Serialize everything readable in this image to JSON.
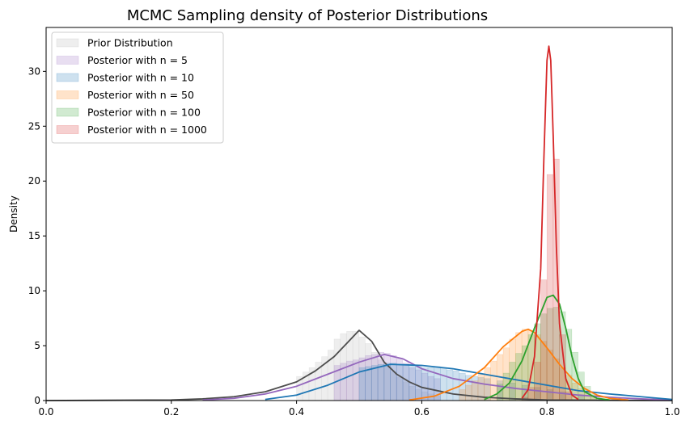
{
  "chart_data": {
    "type": "area",
    "title": "MCMC Sampling density of Posterior Distributions",
    "xlabel": "",
    "ylabel": "Density",
    "xlim": [
      0,
      1
    ],
    "ylim": [
      0,
      34
    ],
    "xticks": [
      "0.0",
      "0.2",
      "0.4",
      "0.6",
      "0.8",
      "1.0"
    ],
    "yticks": [
      "0",
      "5",
      "10",
      "15",
      "20",
      "25",
      "30"
    ],
    "grid": false,
    "legend_position": "top-left",
    "series": [
      {
        "name": "Prior Distribution",
        "color": "#b0b0b0",
        "line_color": "#4d4d4d",
        "bin_width": 0.01,
        "hist": [
          [
            0.4,
            2.2
          ],
          [
            0.41,
            2.6
          ],
          [
            0.42,
            3.0
          ],
          [
            0.43,
            3.5
          ],
          [
            0.44,
            4.0
          ],
          [
            0.45,
            4.6
          ],
          [
            0.46,
            5.6
          ],
          [
            0.47,
            6.1
          ],
          [
            0.48,
            6.3
          ],
          [
            0.49,
            6.3
          ],
          [
            0.5,
            5.8
          ],
          [
            0.51,
            5.2
          ],
          [
            0.52,
            4.4
          ],
          [
            0.53,
            3.7
          ],
          [
            0.54,
            3.2
          ],
          [
            0.55,
            2.6
          ],
          [
            0.56,
            2.1
          ],
          [
            0.57,
            1.7
          ],
          [
            0.58,
            1.3
          ],
          [
            0.59,
            1.0
          ],
          [
            0.6,
            0.8
          ],
          [
            0.61,
            0.6
          ],
          [
            0.62,
            0.4
          ]
        ],
        "kde": [
          [
            0.0,
            0
          ],
          [
            0.2,
            0.05
          ],
          [
            0.25,
            0.15
          ],
          [
            0.3,
            0.35
          ],
          [
            0.35,
            0.8
          ],
          [
            0.4,
            1.7
          ],
          [
            0.43,
            2.7
          ],
          [
            0.46,
            4.0
          ],
          [
            0.48,
            5.2
          ],
          [
            0.5,
            6.4
          ],
          [
            0.52,
            5.4
          ],
          [
            0.54,
            3.5
          ],
          [
            0.56,
            2.4
          ],
          [
            0.58,
            1.7
          ],
          [
            0.6,
            1.2
          ],
          [
            0.65,
            0.6
          ],
          [
            0.7,
            0.3
          ],
          [
            0.75,
            0.15
          ],
          [
            0.8,
            0.05
          ],
          [
            1.0,
            0
          ]
        ]
      },
      {
        "name": "Posterior with n = 5",
        "color": "#9467bd",
        "line_color": "#9467bd",
        "bin_width": 0.01,
        "hist": [
          [
            0.46,
            3.2
          ],
          [
            0.47,
            3.4
          ],
          [
            0.48,
            3.6
          ],
          [
            0.49,
            3.7
          ],
          [
            0.5,
            3.9
          ],
          [
            0.51,
            4.1
          ],
          [
            0.52,
            4.2
          ],
          [
            0.53,
            4.4
          ],
          [
            0.54,
            4.3
          ],
          [
            0.55,
            4.1
          ],
          [
            0.56,
            3.8
          ],
          [
            0.57,
            3.4
          ],
          [
            0.58,
            3.0
          ],
          [
            0.59,
            2.8
          ],
          [
            0.6,
            2.5
          ],
          [
            0.61,
            2.2
          ],
          [
            0.62,
            2.0
          ]
        ],
        "kde": [
          [
            0.25,
            0.05
          ],
          [
            0.3,
            0.2
          ],
          [
            0.35,
            0.6
          ],
          [
            0.4,
            1.3
          ],
          [
            0.45,
            2.4
          ],
          [
            0.5,
            3.5
          ],
          [
            0.54,
            4.2
          ],
          [
            0.57,
            3.8
          ],
          [
            0.6,
            2.9
          ],
          [
            0.65,
            2.0
          ],
          [
            0.7,
            1.5
          ],
          [
            0.75,
            1.1
          ],
          [
            0.8,
            0.8
          ],
          [
            0.85,
            0.5
          ],
          [
            0.9,
            0.3
          ],
          [
            0.95,
            0.15
          ],
          [
            1.0,
            0.05
          ]
        ]
      },
      {
        "name": "Posterior with n = 10",
        "color": "#1f77b4",
        "line_color": "#1f77b4",
        "bin_width": 0.01,
        "hist": [
          [
            0.5,
            3.0
          ],
          [
            0.51,
            3.1
          ],
          [
            0.52,
            3.2
          ],
          [
            0.53,
            3.3
          ],
          [
            0.54,
            3.4
          ],
          [
            0.55,
            3.4
          ],
          [
            0.56,
            3.3
          ],
          [
            0.57,
            3.3
          ],
          [
            0.58,
            3.2
          ],
          [
            0.59,
            3.1
          ],
          [
            0.6,
            3.0
          ],
          [
            0.61,
            3.0
          ],
          [
            0.62,
            3.1
          ],
          [
            0.63,
            3.0
          ],
          [
            0.64,
            2.8
          ],
          [
            0.65,
            2.7
          ],
          [
            0.66,
            2.5
          ],
          [
            0.67,
            2.3
          ],
          [
            0.68,
            2.2
          ],
          [
            0.69,
            2.1
          ],
          [
            0.7,
            2.0
          ],
          [
            0.72,
            1.8
          ],
          [
            0.74,
            1.6
          ],
          [
            0.76,
            1.4
          ],
          [
            0.78,
            1.2
          ],
          [
            0.8,
            1.0
          ],
          [
            0.82,
            0.8
          ],
          [
            0.85,
            0.5
          ]
        ],
        "kde": [
          [
            0.35,
            0.1
          ],
          [
            0.4,
            0.5
          ],
          [
            0.45,
            1.4
          ],
          [
            0.5,
            2.6
          ],
          [
            0.55,
            3.3
          ],
          [
            0.6,
            3.2
          ],
          [
            0.65,
            2.9
          ],
          [
            0.7,
            2.4
          ],
          [
            0.75,
            1.9
          ],
          [
            0.8,
            1.4
          ],
          [
            0.85,
            0.9
          ],
          [
            0.9,
            0.6
          ],
          [
            0.95,
            0.35
          ],
          [
            1.0,
            0.1
          ]
        ]
      },
      {
        "name": "Posterior with n = 50",
        "color": "#ff7f0e",
        "line_color": "#ff7f0e",
        "bin_width": 0.01,
        "hist": [
          [
            0.66,
            1.0
          ],
          [
            0.67,
            1.4
          ],
          [
            0.68,
            1.8
          ],
          [
            0.69,
            2.4
          ],
          [
            0.7,
            3.0
          ],
          [
            0.71,
            3.6
          ],
          [
            0.72,
            4.2
          ],
          [
            0.73,
            4.8
          ],
          [
            0.74,
            5.6
          ],
          [
            0.75,
            6.2
          ],
          [
            0.76,
            6.5
          ],
          [
            0.77,
            6.4
          ],
          [
            0.78,
            6.0
          ],
          [
            0.79,
            5.4
          ],
          [
            0.8,
            4.6
          ],
          [
            0.81,
            3.8
          ],
          [
            0.82,
            3.0
          ],
          [
            0.83,
            2.3
          ],
          [
            0.84,
            1.6
          ],
          [
            0.85,
            1.1
          ],
          [
            0.86,
            0.7
          ],
          [
            0.87,
            0.4
          ]
        ],
        "kde": [
          [
            0.58,
            0.05
          ],
          [
            0.62,
            0.4
          ],
          [
            0.66,
            1.3
          ],
          [
            0.7,
            3.0
          ],
          [
            0.73,
            4.9
          ],
          [
            0.76,
            6.3
          ],
          [
            0.77,
            6.5
          ],
          [
            0.78,
            6.2
          ],
          [
            0.8,
            4.8
          ],
          [
            0.82,
            3.3
          ],
          [
            0.84,
            2.0
          ],
          [
            0.86,
            1.1
          ],
          [
            0.88,
            0.5
          ],
          [
            0.9,
            0.2
          ],
          [
            0.93,
            0.05
          ]
        ]
      },
      {
        "name": "Posterior with n = 100",
        "color": "#2ca02c",
        "line_color": "#2ca02c",
        "bin_width": 0.01,
        "hist": [
          [
            0.72,
            1.5
          ],
          [
            0.73,
            2.5
          ],
          [
            0.74,
            3.5
          ],
          [
            0.75,
            4.3
          ],
          [
            0.76,
            5.0
          ],
          [
            0.77,
            6.0
          ],
          [
            0.78,
            7.0
          ],
          [
            0.79,
            7.9
          ],
          [
            0.8,
            8.4
          ],
          [
            0.81,
            8.5
          ],
          [
            0.82,
            8.1
          ],
          [
            0.83,
            6.5
          ],
          [
            0.84,
            4.4
          ],
          [
            0.85,
            2.6
          ],
          [
            0.86,
            1.3
          ],
          [
            0.87,
            0.6
          ]
        ],
        "kde": [
          [
            0.7,
            0.1
          ],
          [
            0.72,
            0.6
          ],
          [
            0.74,
            1.6
          ],
          [
            0.76,
            3.6
          ],
          [
            0.78,
            6.6
          ],
          [
            0.8,
            9.4
          ],
          [
            0.81,
            9.6
          ],
          [
            0.82,
            8.8
          ],
          [
            0.83,
            6.6
          ],
          [
            0.84,
            4.0
          ],
          [
            0.85,
            2.0
          ],
          [
            0.86,
            0.8
          ],
          [
            0.88,
            0.2
          ],
          [
            0.9,
            0.05
          ]
        ]
      },
      {
        "name": "Posterior with n = 1000",
        "color": "#d62728",
        "line_color": "#d62728",
        "bin_width": 0.01,
        "hist": [
          [
            0.76,
            0.3
          ],
          [
            0.77,
            1.2
          ],
          [
            0.78,
            3.5
          ],
          [
            0.79,
            11.0
          ],
          [
            0.8,
            20.6
          ],
          [
            0.81,
            22.0
          ],
          [
            0.82,
            6.0
          ],
          [
            0.83,
            0.8
          ]
        ],
        "kde": [
          [
            0.76,
            0.2
          ],
          [
            0.77,
            1.0
          ],
          [
            0.78,
            4.0
          ],
          [
            0.79,
            12.0
          ],
          [
            0.795,
            22.0
          ],
          [
            0.8,
            31.0
          ],
          [
            0.803,
            32.3
          ],
          [
            0.806,
            31.0
          ],
          [
            0.81,
            24.0
          ],
          [
            0.815,
            14.0
          ],
          [
            0.82,
            7.0
          ],
          [
            0.83,
            2.0
          ],
          [
            0.84,
            0.5
          ],
          [
            0.85,
            0.1
          ]
        ]
      }
    ]
  }
}
